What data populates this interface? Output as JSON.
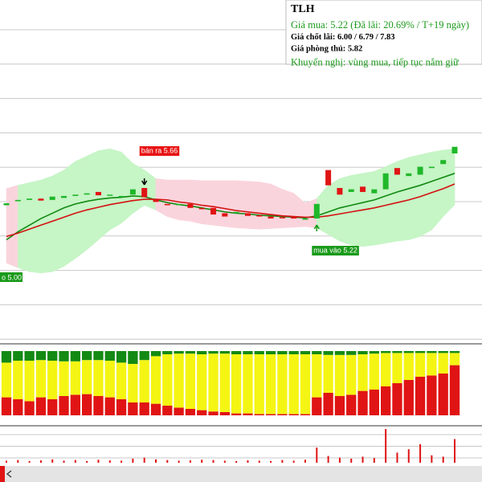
{
  "chart_data": {
    "type": "candlestick",
    "title": "TLH",
    "info": [
      "Giá mua: 5.22 (Đã lãi: 20.69% / T+19 ngày)",
      "Giá chốt lãi: 6.00 / 6.79 / 7.83",
      "Giá phòng thủ: 5.82",
      "Khuyến nghị: vùng mua, tiếp tục nắm giữ"
    ],
    "info_colors": [
      "#1a9a1a",
      "#000000",
      "#000000",
      "#1a9a1a"
    ],
    "ylim": [
      3.37,
      8.51
    ],
    "up_color": "#1fb82a",
    "down_color": "#e01414",
    "candles": {
      "open": [
        5.42,
        5.48,
        5.5,
        5.52,
        5.5,
        5.53,
        5.56,
        5.58,
        5.62,
        5.57,
        5.56,
        5.58,
        5.68,
        5.5,
        5.44,
        5.42,
        5.44,
        5.38,
        5.38,
        5.3,
        5.3,
        5.3,
        5.27,
        5.25,
        5.24,
        5.24,
        5.21,
        5.22,
        5.95,
        5.68,
        5.62,
        5.7,
        5.6,
        5.66,
        5.98,
        5.86,
        5.88,
        5.98,
        6.04,
        6.2
      ],
      "close": [
        5.45,
        5.5,
        5.52,
        5.49,
        5.55,
        5.56,
        5.58,
        5.6,
        5.57,
        5.58,
        5.56,
        5.66,
        5.54,
        5.47,
        5.42,
        5.44,
        5.38,
        5.36,
        5.28,
        5.25,
        5.32,
        5.26,
        5.25,
        5.22,
        5.23,
        5.22,
        5.22,
        5.44,
        5.72,
        5.58,
        5.66,
        5.62,
        5.66,
        5.9,
        5.88,
        5.9,
        6.0,
        6.0,
        6.1,
        6.3
      ]
    },
    "band": {
      "upper": [
        5.67,
        5.72,
        5.76,
        5.8,
        5.86,
        5.95,
        6.08,
        6.16,
        6.24,
        6.27,
        6.22,
        6.05,
        5.95,
        5.82,
        5.8,
        5.8,
        5.8,
        5.79,
        5.79,
        5.79,
        5.79,
        5.78,
        5.77,
        5.74,
        5.66,
        5.6,
        5.45,
        5.52,
        5.72,
        5.82,
        5.87,
        5.9,
        5.93,
        6.0,
        6.08,
        6.14,
        6.18,
        6.22,
        6.25,
        6.27
      ],
      "lower": [
        4.55,
        4.48,
        4.42,
        4.4,
        4.42,
        4.5,
        4.62,
        4.75,
        4.9,
        5.05,
        5.15,
        5.3,
        5.42,
        5.35,
        5.25,
        5.2,
        5.18,
        5.14,
        5.12,
        5.1,
        5.08,
        5.07,
        5.06,
        5.07,
        5.08,
        5.09,
        5.1,
        5.08,
        4.98,
        4.88,
        4.82,
        4.8,
        4.82,
        4.85,
        4.88,
        4.9,
        4.95,
        5.05,
        5.25,
        5.43
      ],
      "up_color": "#c6f5c6",
      "down_color": "#fad4dc"
    },
    "lines": [
      {
        "color": "#118a11",
        "values": [
          4.9,
          5.02,
          5.12,
          5.22,
          5.3,
          5.38,
          5.44,
          5.48,
          5.51,
          5.53,
          5.54,
          5.56,
          5.55,
          5.5,
          5.46,
          5.43,
          5.41,
          5.38,
          5.35,
          5.32,
          5.3,
          5.29,
          5.27,
          5.26,
          5.25,
          5.24,
          5.23,
          5.26,
          5.32,
          5.38,
          5.42,
          5.46,
          5.5,
          5.56,
          5.62,
          5.67,
          5.72,
          5.78,
          5.84,
          5.9
        ]
      },
      {
        "color": "#d41010",
        "values": [
          4.95,
          5.0,
          5.06,
          5.12,
          5.18,
          5.24,
          5.3,
          5.35,
          5.39,
          5.43,
          5.46,
          5.49,
          5.51,
          5.51,
          5.5,
          5.47,
          5.45,
          5.42,
          5.4,
          5.37,
          5.34,
          5.32,
          5.3,
          5.28,
          5.26,
          5.25,
          5.24,
          5.24,
          5.26,
          5.29,
          5.32,
          5.35,
          5.38,
          5.42,
          5.46,
          5.5,
          5.55,
          5.61,
          5.67,
          5.74
        ]
      }
    ],
    "signals": [
      {
        "at": 12,
        "label": "bán ra 5.66",
        "color": "#e81414",
        "place": "above"
      },
      {
        "at": 27,
        "label": "mua vào 5.22",
        "color": "#1a9a1a",
        "place": "below"
      }
    ],
    "edge_label": "o 5.00",
    "indicator": {
      "ylim": [
        0,
        100
      ],
      "series": [
        {
          "color": "#e01414",
          "values": [
            28,
            25,
            22,
            28,
            25,
            30,
            32,
            33,
            30,
            28,
            25,
            20,
            20,
            18,
            15,
            12,
            10,
            8,
            6,
            5,
            3,
            3,
            2,
            2,
            2,
            2,
            2,
            28,
            35,
            30,
            32,
            38,
            40,
            45,
            50,
            55,
            60,
            62,
            65,
            78
          ]
        },
        {
          "color": "#f5f514",
          "values": [
            54,
            60,
            63,
            58,
            60,
            54,
            52,
            53,
            56,
            57,
            57,
            60,
            66,
            74,
            80,
            84,
            86,
            87,
            90,
            91,
            92,
            92,
            93,
            93,
            93,
            93,
            93,
            67,
            59,
            64,
            62,
            57,
            56,
            52,
            47,
            42,
            37,
            35,
            32,
            19
          ]
        },
        {
          "color": "#138a13",
          "values": [
            18,
            15,
            15,
            14,
            15,
            16,
            16,
            14,
            14,
            15,
            18,
            20,
            14,
            8,
            5,
            4,
            4,
            5,
            4,
            4,
            5,
            5,
            5,
            5,
            5,
            5,
            5,
            5,
            6,
            6,
            6,
            5,
            4,
            3,
            3,
            3,
            3,
            3,
            3,
            3
          ]
        }
      ]
    },
    "volume": {
      "ylim": [
        0,
        100
      ],
      "color": "#e01414",
      "values": [
        6,
        8,
        5,
        7,
        10,
        6,
        8,
        5,
        9,
        7,
        6,
        12,
        15,
        10,
        8,
        6,
        7,
        9,
        8,
        6,
        5,
        7,
        6,
        5,
        8,
        6,
        9,
        45,
        20,
        15,
        12,
        18,
        14,
        100,
        30,
        40,
        55,
        22,
        18,
        70
      ]
    }
  }
}
